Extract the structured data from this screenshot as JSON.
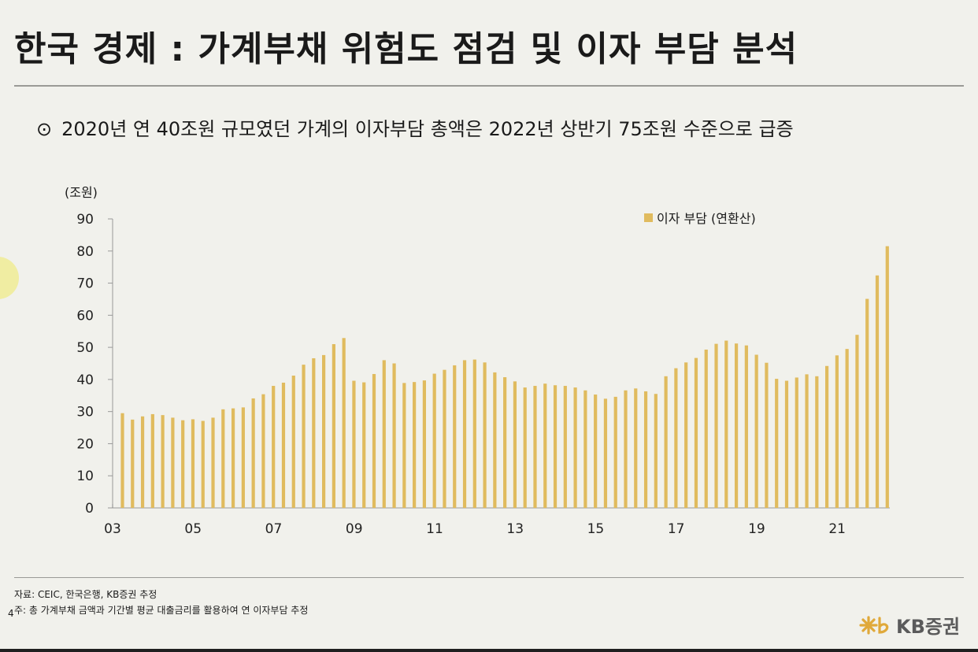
{
  "header": {
    "title": "한국 경제 : 가계부채 위험도 점검 및 이자 부담 분석",
    "subtitle_marker": "⊙",
    "subtitle": "2020년 연 40조원 규모였던 가계의 이자부담 총액은 2022년 상반기 75조원 수준으로 급증"
  },
  "chart_data": {
    "type": "bar",
    "ylabel": "(조원)",
    "ylim": [
      0,
      90
    ],
    "yticks": [
      0,
      10,
      20,
      30,
      40,
      50,
      60,
      70,
      80,
      90
    ],
    "xticks": [
      "03",
      "05",
      "07",
      "09",
      "11",
      "13",
      "15",
      "17",
      "19",
      "21"
    ],
    "x_start_year": 2003,
    "legend_position": "top-right",
    "bar_color": "#e0bb5e",
    "series": [
      {
        "name": "이자 부담 (연환산)",
        "values": [
          29.5,
          27.5,
          28.5,
          29.2,
          28.9,
          28.1,
          27.3,
          27.6,
          27.1,
          28.1,
          30.7,
          31.0,
          31.3,
          34.1,
          35.4,
          38.0,
          39.0,
          41.2,
          44.6,
          46.6,
          47.6,
          51.0,
          52.9,
          39.6,
          39.1,
          41.7,
          46.0,
          45.0,
          38.9,
          39.2,
          39.7,
          41.8,
          43.0,
          44.4,
          46.0,
          46.2,
          45.3,
          42.2,
          40.7,
          39.4,
          37.5,
          38.0,
          38.7,
          38.2,
          38.0,
          37.5,
          36.6,
          35.3,
          34.0,
          34.6,
          36.6,
          37.2,
          36.3,
          35.5,
          41.0,
          43.5,
          45.3,
          46.7,
          49.3,
          51.1,
          52.1,
          51.2,
          50.6,
          47.7,
          45.2,
          40.2,
          39.6,
          40.6,
          41.6,
          41.0,
          44.2,
          47.5,
          49.5,
          53.9,
          65.1,
          72.4,
          81.5
        ]
      }
    ]
  },
  "footer": {
    "source": "자료: CEIC, 한국은행, KB증권 추정",
    "note": "주: 총 가계부채 금액과 기간별 평균 대출금리를 활용하여 연 이자부담 추정",
    "page": "4",
    "logo_text": "KB증권",
    "logo_color": "#e0a93a"
  }
}
